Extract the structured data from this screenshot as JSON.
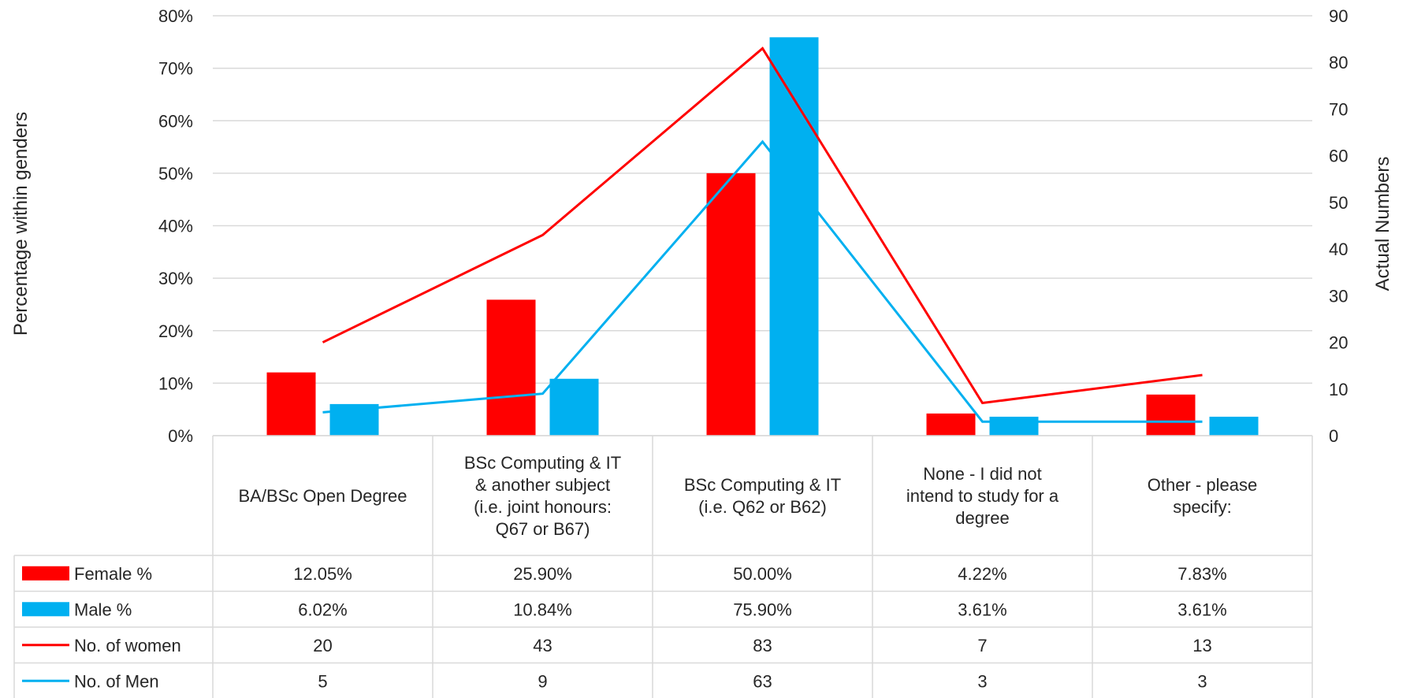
{
  "chart_data": {
    "type": "bar",
    "categories": [
      [
        "BA/BSc Open Degree"
      ],
      [
        "BSc Computing & IT",
        "& another subject",
        "(i.e. joint honours:",
        "Q67 or B67)"
      ],
      [
        "BSc Computing & IT",
        "(i.e. Q62 or B62)"
      ],
      [
        "None - I did not",
        "intend to study for a",
        "degree"
      ],
      [
        "Other - please",
        "specify:"
      ]
    ],
    "series": [
      {
        "name": "Female %",
        "type": "bar",
        "axis": "left",
        "color": "#ff0000",
        "values": [
          12.05,
          25.9,
          50.0,
          4.22,
          7.83
        ],
        "labels": [
          "12.05%",
          "25.90%",
          "50.00%",
          "4.22%",
          "7.83%"
        ]
      },
      {
        "name": "Male %",
        "type": "bar",
        "axis": "left",
        "color": "#00b0f0",
        "values": [
          6.02,
          10.84,
          75.9,
          3.61,
          3.61
        ],
        "labels": [
          "6.02%",
          "10.84%",
          "75.90%",
          "3.61%",
          "3.61%"
        ]
      },
      {
        "name": "No. of women",
        "type": "line",
        "axis": "right",
        "color": "#ff0000",
        "values": [
          20,
          43,
          83,
          7,
          13
        ],
        "labels": [
          "20",
          "43",
          "83",
          "7",
          "13"
        ]
      },
      {
        "name": "No. of Men",
        "type": "line",
        "axis": "right",
        "color": "#00b0f0",
        "values": [
          5,
          9,
          63,
          3,
          3
        ],
        "labels": [
          "5",
          "9",
          "63",
          "3",
          "3"
        ]
      }
    ],
    "ylabel": "Percentage within genders",
    "y2label": "Actual Numbers",
    "ylim": [
      0,
      80
    ],
    "y2lim": [
      0,
      90
    ],
    "yticks": [
      "0%",
      "10%",
      "20%",
      "30%",
      "40%",
      "50%",
      "60%",
      "70%",
      "80%"
    ],
    "y2ticks": [
      "0",
      "10",
      "20",
      "30",
      "40",
      "50",
      "60",
      "70",
      "80",
      "90"
    ],
    "grid": true,
    "legend": "data table"
  }
}
